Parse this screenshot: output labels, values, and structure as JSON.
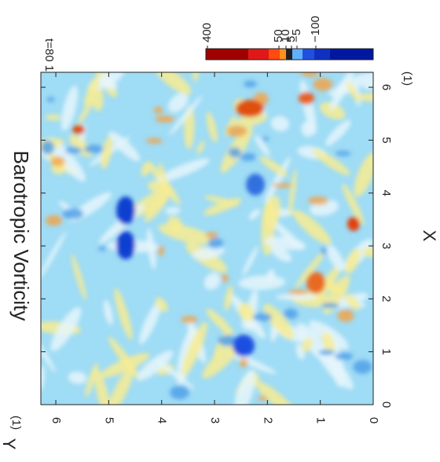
{
  "chart_data": {
    "type": "heatmap",
    "title": "Barotropic Vorticity",
    "subtitle": "t=80 1",
    "xlabel": "X",
    "ylabel": "Y",
    "x_unit": "(1)",
    "y_unit": "(1)",
    "xlim": [
      0,
      6.283
    ],
    "ylim": [
      0,
      6.283
    ],
    "xticks": [
      0,
      1,
      2,
      3,
      4,
      5,
      6
    ],
    "yticks": [
      0,
      1,
      2,
      3,
      4,
      5,
      6
    ],
    "colorbar": {
      "colors": [
        "#a00000",
        "#e01818",
        "#ff4a10",
        "#ff9020",
        "#202020",
        "#60b0ff",
        "#2050e0",
        "#1030c0",
        "#0018a0"
      ],
      "ticks": [
        400,
        50,
        10,
        5,
        {
          "value": -5,
          "label": "−5"
        },
        {
          "value": -100,
          "label": "−100"
        }
      ]
    }
  }
}
